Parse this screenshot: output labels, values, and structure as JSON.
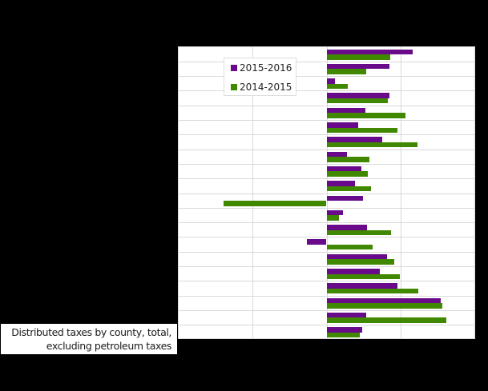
{
  "chart_data": {
    "type": "bar",
    "orientation": "horizontal",
    "title": "",
    "caption": "Distributed taxes by county, total, excluding petroleum taxes",
    "xlabel": "",
    "ylabel": "",
    "xlim": [
      -2,
      2
    ],
    "x_ticks": [
      -2,
      -1,
      0,
      1,
      2
    ],
    "x_ticks_note": "Tick labels and category labels are rendered in black on a black background and are not legible; values are expressed in grid units (1 unit = one vertical gridline spacing).",
    "grid": true,
    "legend_position": "top-left inside plot",
    "categories": [
      "",
      "",
      "",
      "",
      "",
      "",
      "",
      "",
      "",
      "",
      "",
      "",
      "",
      "",
      "",
      "",
      "",
      "",
      "",
      ""
    ],
    "series": [
      {
        "name": "2015-2016",
        "color": "#690a8a",
        "values": [
          1.16,
          0.85,
          0.11,
          0.85,
          0.52,
          0.43,
          0.75,
          0.27,
          0.47,
          0.38,
          0.49,
          0.22,
          0.54,
          -0.26,
          0.81,
          0.72,
          0.95,
          1.54,
          0.53,
          0.48
        ]
      },
      {
        "name": "2014-2015",
        "color": "#3f8800",
        "values": [
          0.86,
          0.53,
          0.29,
          0.82,
          1.06,
          0.95,
          1.22,
          0.58,
          0.55,
          0.6,
          -1.39,
          0.17,
          0.87,
          0.62,
          0.91,
          0.99,
          1.23,
          1.56,
          1.61,
          0.45
        ]
      }
    ]
  },
  "legend": {
    "items": [
      {
        "label": "2015-2016",
        "color": "#690a8a"
      },
      {
        "label": "2014-2015",
        "color": "#3f8800"
      }
    ]
  },
  "caption": {
    "line1": "Distributed taxes by county, total,",
    "line2": "excluding petroleum taxes"
  }
}
